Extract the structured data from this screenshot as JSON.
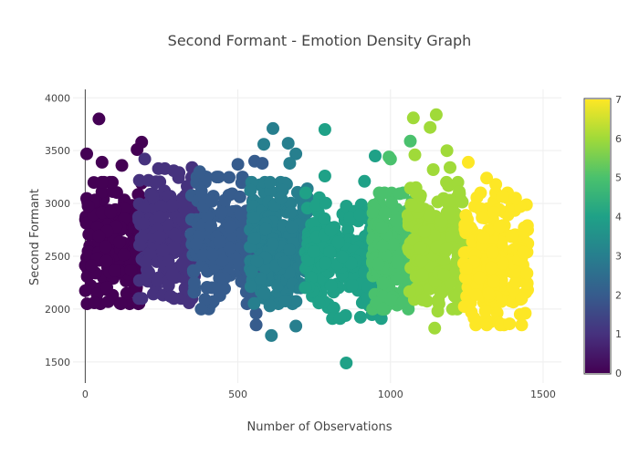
{
  "chart_data": {
    "type": "scatter",
    "title": "Second Formant - Emotion Density Graph",
    "xlabel": "Number of Observations",
    "ylabel": "Second Formant",
    "xlim": [
      -40,
      1560
    ],
    "ylim": [
      1300,
      4080
    ],
    "x_ticks": [
      0,
      500,
      1000,
      1500
    ],
    "y_ticks": [
      1500,
      2000,
      2500,
      3000,
      3500,
      4000
    ],
    "grid": true,
    "legend": "none",
    "colorbar": {
      "ticks": [
        0,
        1,
        2,
        3,
        4,
        5,
        6,
        7
      ],
      "range": [
        0,
        7
      ],
      "colorscale": "Viridis"
    },
    "colors": {
      "0": "#440154",
      "1": "#46327e",
      "2": "#365c8d",
      "3": "#277f8e",
      "4": "#1fa187",
      "5": "#4ac16d",
      "6": "#a0da39",
      "7": "#fde725"
    },
    "groups": [
      {
        "color_value": 0,
        "x_range": [
          0,
          190
        ],
        "y_core": [
          2050,
          3200
        ],
        "outliers": [
          [
            45,
            3800
          ],
          [
            185,
            3580
          ],
          [
            170,
            3510
          ],
          [
            5,
            3470
          ],
          [
            120,
            3360
          ],
          [
            55,
            3390
          ],
          [
            30,
            2060
          ],
          [
            75,
            2070
          ]
        ]
      },
      {
        "color_value": 1,
        "x_range": [
          175,
          360
        ],
        "y_core": [
          2100,
          3330
        ],
        "outliers": [
          [
            195,
            3420
          ],
          [
            350,
            3340
          ],
          [
            290,
            3310
          ],
          [
            340,
            2060
          ],
          [
            280,
            2120
          ]
        ]
      },
      {
        "color_value": 2,
        "x_range": [
          345,
          560
        ],
        "y_core": [
          2000,
          3250
        ],
        "outliers": [
          [
            500,
            3370
          ],
          [
            555,
            3400
          ],
          [
            580,
            3380
          ],
          [
            375,
            3300
          ],
          [
            560,
            1960
          ],
          [
            560,
            1850
          ],
          [
            380,
            2000
          ],
          [
            530,
            2050
          ]
        ]
      },
      {
        "color_value": 3,
        "x_range": [
          540,
          730
        ],
        "y_core": [
          2050,
          3200
        ],
        "outliers": [
          [
            615,
            3710
          ],
          [
            585,
            3560
          ],
          [
            665,
            3570
          ],
          [
            690,
            3470
          ],
          [
            670,
            3380
          ],
          [
            610,
            1750
          ],
          [
            690,
            1840
          ],
          [
            605,
            2030
          ]
        ]
      },
      {
        "color_value": 4,
        "x_range": [
          720,
          960
        ],
        "y_core": [
          1920,
          3100
        ],
        "outliers": [
          [
            785,
            3700
          ],
          [
            855,
            1490
          ],
          [
            950,
            3450
          ],
          [
            785,
            3260
          ],
          [
            915,
            3210
          ],
          [
            810,
            1910
          ],
          [
            835,
            1910
          ],
          [
            970,
            1910
          ]
        ]
      },
      {
        "color_value": 5,
        "x_range": [
          940,
          1080
        ],
        "y_core": [
          2000,
          3100
        ],
        "outliers": [
          [
            1000,
            3420
          ],
          [
            1065,
            3590
          ],
          [
            995,
            3440
          ]
        ]
      },
      {
        "color_value": 6,
        "x_range": [
          1055,
          1250
        ],
        "y_core": [
          2000,
          3200
        ],
        "outliers": [
          [
            1075,
            3810
          ],
          [
            1150,
            3840
          ],
          [
            1130,
            3720
          ],
          [
            1185,
            3500
          ],
          [
            1195,
            3340
          ],
          [
            1140,
            3320
          ],
          [
            1080,
            3460
          ],
          [
            1145,
            1820
          ],
          [
            1155,
            1980
          ]
        ]
      },
      {
        "color_value": 7,
        "x_range": [
          1240,
          1450
        ],
        "y_core": [
          1850,
          3100
        ],
        "outliers": [
          [
            1255,
            3390
          ],
          [
            1345,
            3180
          ],
          [
            1315,
            3240
          ],
          [
            1410,
            3050
          ],
          [
            1360,
            1850
          ],
          [
            1390,
            1860
          ],
          [
            1425,
            1950
          ],
          [
            1265,
            1970
          ]
        ]
      }
    ]
  }
}
